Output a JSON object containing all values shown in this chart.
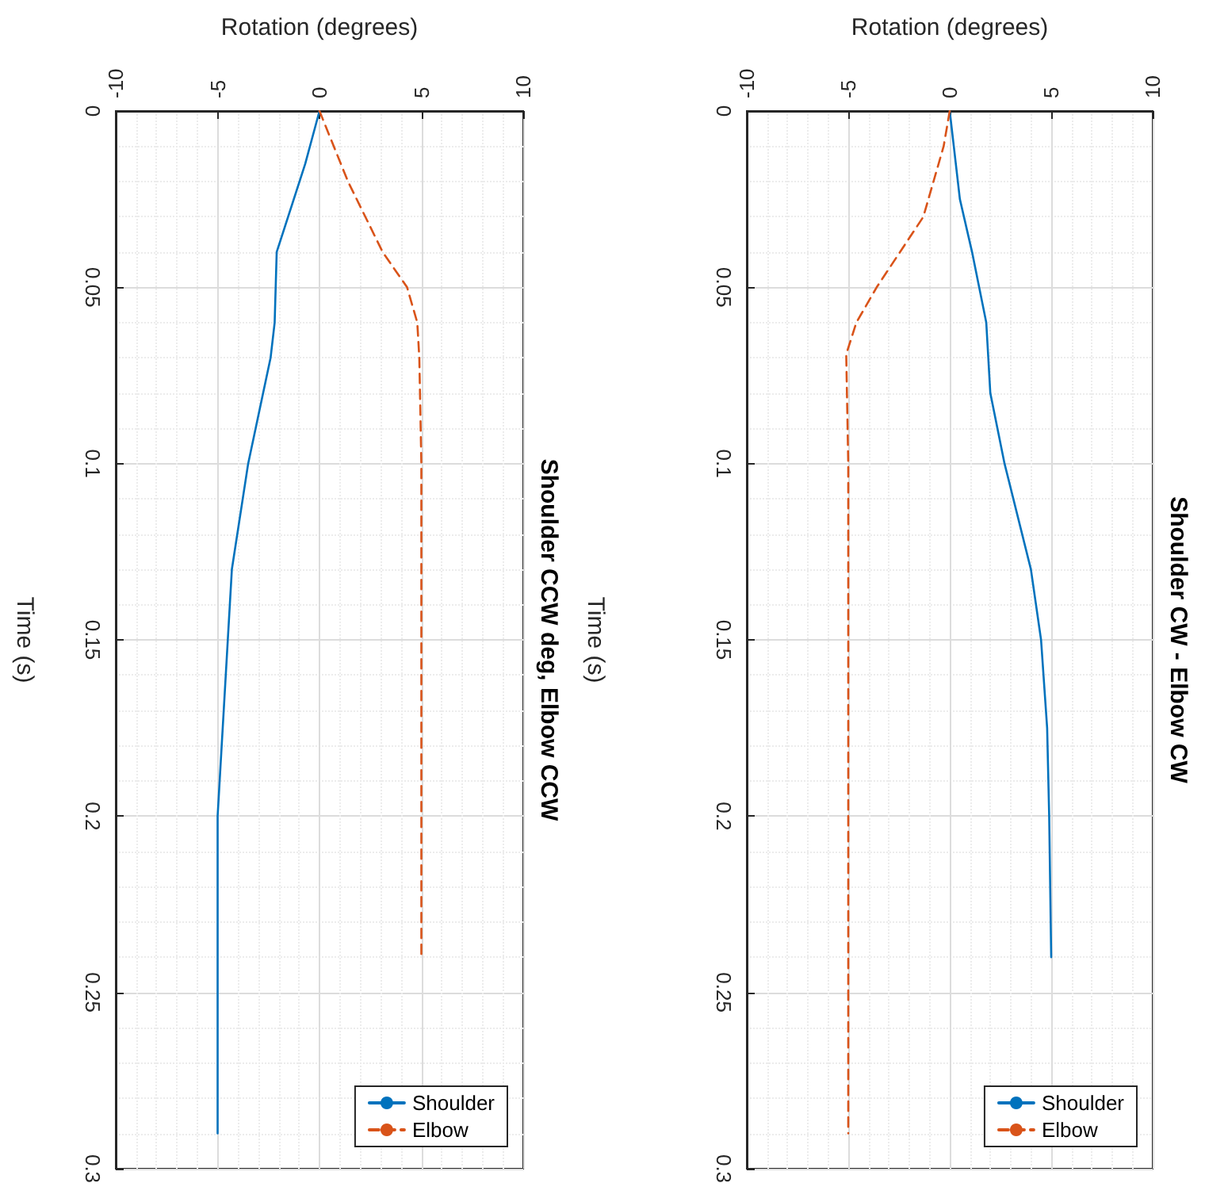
{
  "chart_data": [
    {
      "type": "line",
      "title": "Shoulder CCW deg, Elbow CCW",
      "xlabel": "Rotation (degrees)",
      "ylabel": "Time (s)",
      "xlim": [
        -10,
        10
      ],
      "xticks": [
        -10,
        -5,
        0,
        5,
        10
      ],
      "ylim": [
        0.3,
        0
      ],
      "yticks": [
        0,
        0.05,
        0.1,
        0.15,
        0.2,
        0.25,
        0.3
      ],
      "grid": true,
      "legend": "bottom right",
      "marker": "none",
      "series": [
        {
          "name": "Shoulder",
          "color": "#0072bd",
          "line_style": "solid",
          "x": [
            0,
            -0.7,
            -2.1,
            -2.2,
            -2.4,
            -3.5,
            -4.3,
            -4.5,
            -5.0,
            -5.0,
            -5.0
          ],
          "values": [
            0,
            0.015,
            0.04,
            0.06,
            0.07,
            0.1,
            0.13,
            0.15,
            0.2,
            0.25,
            0.29
          ]
        },
        {
          "name": "Elbow",
          "color": "#d95319",
          "line_style": "dashed",
          "x": [
            0,
            1.4,
            3.1,
            4.3,
            4.8,
            4.9,
            5.0,
            5.0,
            5.0
          ],
          "values": [
            0,
            0.02,
            0.04,
            0.05,
            0.06,
            0.07,
            0.1,
            0.2,
            0.24
          ]
        }
      ]
    },
    {
      "type": "line",
      "title": "Shoulder CW - Elbow CW",
      "xlabel": "Rotation (degrees)",
      "ylabel": "Time (s)",
      "xlim": [
        -10,
        10
      ],
      "xticks": [
        -10,
        -5,
        0,
        5,
        10
      ],
      "ylim": [
        0.3,
        0
      ],
      "yticks": [
        0,
        0.05,
        0.1,
        0.15,
        0.2,
        0.25,
        0.3
      ],
      "grid": true,
      "legend": "bottom right",
      "marker": "none",
      "series": [
        {
          "name": "Shoulder",
          "color": "#0072bd",
          "line_style": "solid",
          "x": [
            0,
            0.2,
            0.5,
            1.1,
            1.8,
            2.0,
            2.7,
            4.0,
            4.5,
            4.8,
            4.9,
            5.0
          ],
          "values": [
            0,
            0.01,
            0.025,
            0.04,
            0.06,
            0.08,
            0.1,
            0.13,
            0.15,
            0.175,
            0.2,
            0.24
          ]
        },
        {
          "name": "Elbow",
          "color": "#d95319",
          "line_style": "dashed",
          "x": [
            0,
            -0.3,
            -1.3,
            -3.6,
            -4.6,
            -5.1,
            -5.0,
            -5.0,
            -5.0
          ],
          "values": [
            0,
            0.01,
            0.03,
            0.05,
            0.06,
            0.069,
            0.1,
            0.2,
            0.29
          ]
        }
      ]
    }
  ]
}
